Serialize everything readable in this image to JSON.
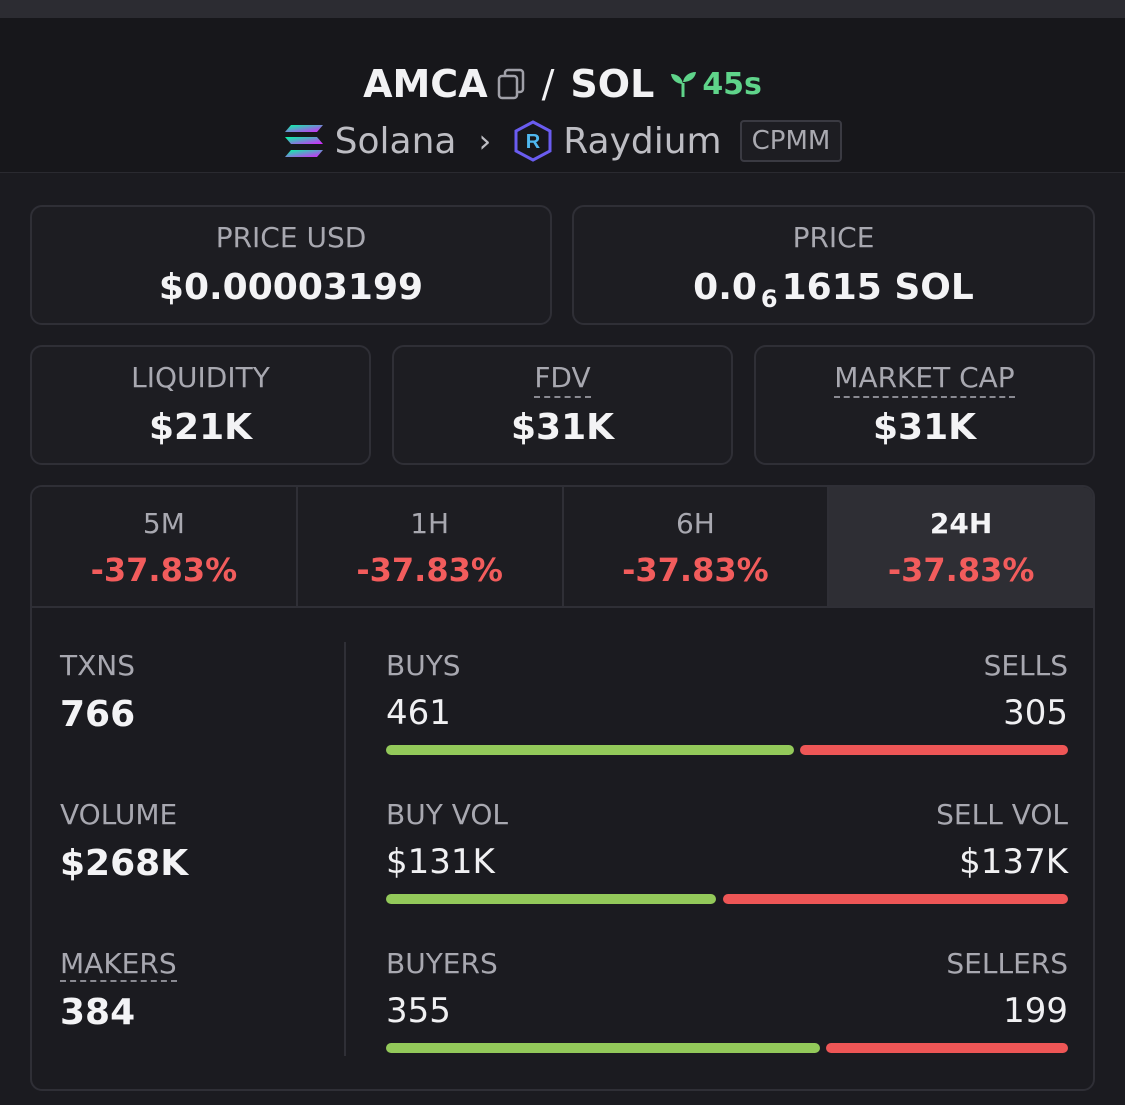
{
  "header": {
    "base_token": "AMCA",
    "slash": "/",
    "quote_token": "SOL",
    "age": "45s",
    "chain": "Solana",
    "chevron": "›",
    "dex": "Raydium",
    "pool_type": "CPMM",
    "colors": {
      "age": "#5fd48a"
    }
  },
  "price_usd": {
    "label": "PRICE USD",
    "value": "$0.00003199"
  },
  "price": {
    "label": "PRICE",
    "prefix": "0.0",
    "zeros": "6",
    "digits": "1615",
    "unit": "SOL"
  },
  "liquidity": {
    "label": "LIQUIDITY",
    "value": "$21K"
  },
  "fdv": {
    "label": "FDV",
    "value": "$31K"
  },
  "market_cap": {
    "label": "MARKET CAP",
    "value": "$31K"
  },
  "tabs": [
    {
      "label": "5M",
      "change": "-37.83%"
    },
    {
      "label": "1H",
      "change": "-37.83%"
    },
    {
      "label": "6H",
      "change": "-37.83%"
    },
    {
      "label": "24H",
      "change": "-37.83%"
    }
  ],
  "active_tab": "24H",
  "stats": {
    "txns": {
      "label": "TXNS",
      "value": "766"
    },
    "volume": {
      "label": "VOLUME",
      "value": "$268K"
    },
    "makers": {
      "label": "MAKERS",
      "value": "384"
    }
  },
  "splits": {
    "txns": {
      "left_label": "BUYS",
      "right_label": "SELLS",
      "left_value": "461",
      "right_value": "305",
      "left_share": 0.602
    },
    "volume": {
      "left_label": "BUY VOL",
      "right_label": "SELL VOL",
      "left_value": "$131K",
      "right_value": "$137K",
      "left_share": 0.489
    },
    "makers": {
      "left_label": "BUYERS",
      "right_label": "SELLERS",
      "left_value": "355",
      "right_value": "199",
      "left_share": 0.641
    }
  },
  "colors": {
    "buy": "#93c95a",
    "sell": "#ee5656",
    "negative": "#f25c5c"
  }
}
